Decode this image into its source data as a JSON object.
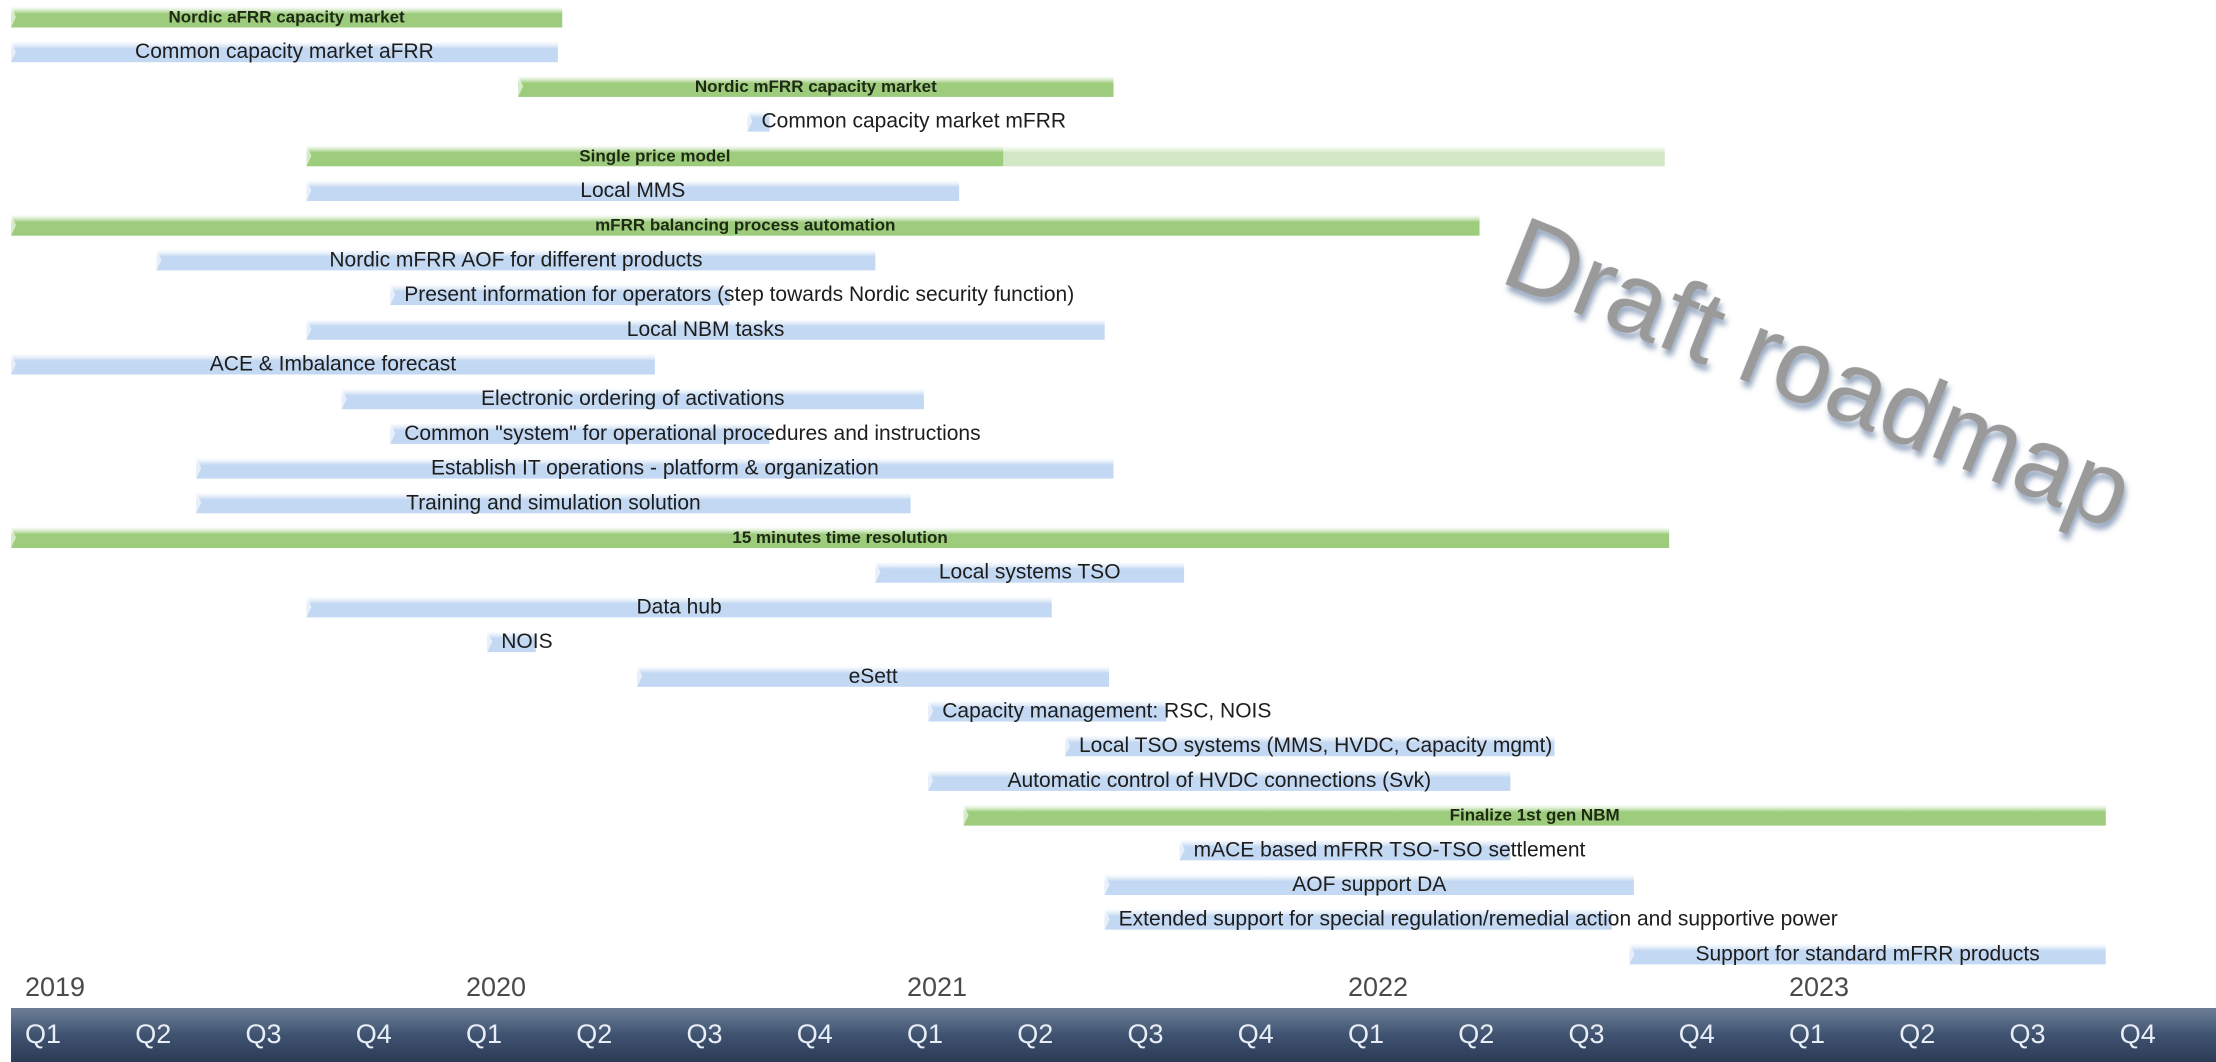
{
  "chart_data": {
    "type": "gantt",
    "watermark": "Draft roadmap",
    "xlim": [
      2019,
      2024
    ],
    "xticks": [
      2019,
      2020,
      2021,
      2022,
      2023
    ],
    "categories": [
      "Q1",
      "Q2",
      "Q3",
      "Q4",
      "Q1",
      "Q2",
      "Q3",
      "Q4",
      "Q1",
      "Q2",
      "Q3",
      "Q4",
      "Q1",
      "Q2",
      "Q3",
      "Q4",
      "Q1",
      "Q2",
      "Q3",
      "Q4"
    ],
    "colors": {
      "main": "#9ccc7c",
      "sub": "#c3d8f2"
    },
    "tasks": [
      {
        "label": "Nordic aFRR capacity market",
        "kind": "main",
        "start": 2019.0,
        "end": 2020.25
      },
      {
        "label": "Common capacity market aFRR",
        "kind": "sub",
        "start": 2019.0,
        "end": 2020.24
      },
      {
        "label": "Nordic mFRR capacity market",
        "kind": "main",
        "start": 2020.15,
        "end": 2021.5
      },
      {
        "label": "Common capacity market mFRR",
        "kind": "sub",
        "start": 2020.67,
        "end": 2020.72
      },
      {
        "label": "Single price model",
        "kind": "main",
        "start": 2019.67,
        "end": 2021.25,
        "extension_end": 2022.75
      },
      {
        "label": "Local MMS",
        "kind": "sub",
        "start": 2019.67,
        "end": 2021.15
      },
      {
        "label": "mFRR balancing process automation",
        "kind": "main",
        "start": 2019.0,
        "end": 2022.33
      },
      {
        "label": "Nordic mFRR AOF for different products",
        "kind": "sub",
        "start": 2019.33,
        "end": 2020.96
      },
      {
        "label": "Present information for operators (step towards Nordic security function)",
        "kind": "sub",
        "start": 2019.86,
        "end": 2020.63
      },
      {
        "label": "Local NBM tasks",
        "kind": "sub",
        "start": 2019.67,
        "end": 2021.48
      },
      {
        "label": "ACE & Imbalance forecast",
        "kind": "sub",
        "start": 2019.0,
        "end": 2020.46
      },
      {
        "label": "Electronic ordering of activations",
        "kind": "sub",
        "start": 2019.75,
        "end": 2021.07
      },
      {
        "label": "Common \"system\" for operational procedures and instructions",
        "kind": "sub",
        "start": 2019.86,
        "end": 2020.72
      },
      {
        "label": "Establish IT operations - platform & organization",
        "kind": "sub",
        "start": 2019.42,
        "end": 2021.5
      },
      {
        "label": "Training and simulation solution",
        "kind": "sub",
        "start": 2019.42,
        "end": 2021.04
      },
      {
        "label": "15 minutes time resolution",
        "kind": "main",
        "start": 2019.0,
        "end": 2022.76
      },
      {
        "label": "Local systems TSO",
        "kind": "sub",
        "start": 2020.96,
        "end": 2021.66
      },
      {
        "label": "Data hub",
        "kind": "sub",
        "start": 2019.67,
        "end": 2021.36
      },
      {
        "label": "NOIS",
        "kind": "sub",
        "start": 2020.08,
        "end": 2020.19
      },
      {
        "label": "eSett",
        "kind": "sub",
        "start": 2020.42,
        "end": 2021.49
      },
      {
        "label": "Capacity management: RSC, NOIS",
        "kind": "sub",
        "start": 2021.08,
        "end": 2021.62
      },
      {
        "label": "Local TSO systems (MMS, HVDC, Capacity mgmt)",
        "kind": "sub",
        "start": 2021.39,
        "end": 2022.5
      },
      {
        "label": "Automatic control of HVDC connections (Svk)",
        "kind": "sub",
        "start": 2021.08,
        "end": 2022.4
      },
      {
        "label": "Finalize 1st gen NBM",
        "kind": "main",
        "start": 2021.16,
        "end": 2023.75
      },
      {
        "label": "mACE based mFRR TSO-TSO settlement",
        "kind": "sub",
        "start": 2021.65,
        "end": 2022.4
      },
      {
        "label": "AOF support DA",
        "kind": "sub",
        "start": 2021.48,
        "end": 2022.68
      },
      {
        "label": "Extended support for special regulation/remedial action and supportive power",
        "kind": "sub",
        "start": 2021.48,
        "end": 2022.63
      },
      {
        "label": "Support for standard mFRR products",
        "kind": "sub",
        "start": 2022.67,
        "end": 2023.75
      }
    ]
  }
}
